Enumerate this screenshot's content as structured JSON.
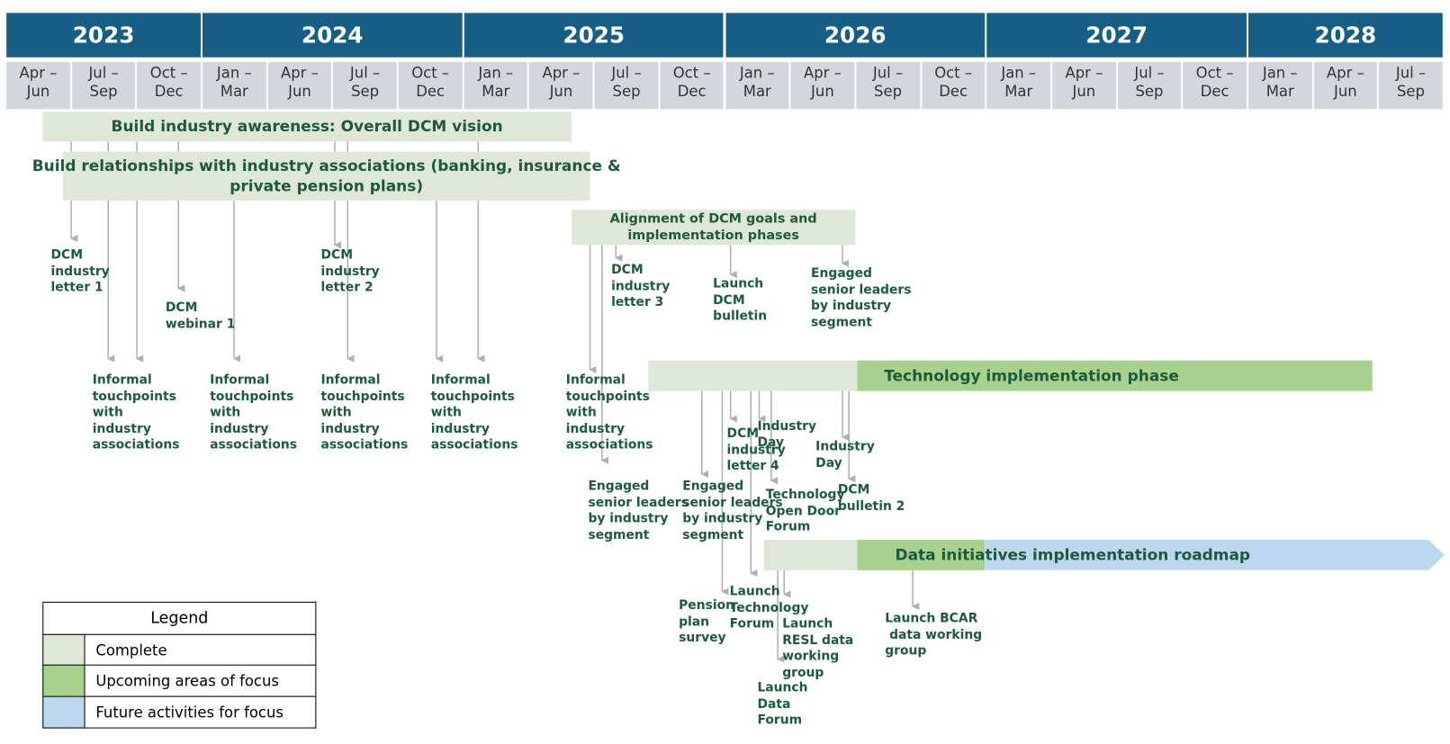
{
  "timeline": {
    "years": [
      "2023",
      "2024",
      "2025",
      "2026",
      "2027",
      "2028"
    ],
    "quarters": [
      [
        "Apr –",
        "Jun"
      ],
      [
        "Jul –",
        "Sep"
      ],
      [
        "Oct –",
        "Dec"
      ],
      [
        "Jan –",
        "Mar"
      ],
      [
        "Apr –",
        "Jun"
      ],
      [
        "Jul –",
        "Sep"
      ],
      [
        "Oct –",
        "Dec"
      ],
      [
        "Jan –",
        "Mar"
      ],
      [
        "Apr –",
        "Jun"
      ],
      [
        "Jul –",
        "Sep"
      ],
      [
        "Oct –",
        "Dec"
      ],
      [
        "Jan –",
        "Mar"
      ],
      [
        "Apr –",
        "Jun"
      ],
      [
        "Jul –",
        "Sep"
      ],
      [
        "Oct –",
        "Dec"
      ],
      [
        "Jan –",
        "Mar"
      ],
      [
        "Apr –",
        "Jun"
      ],
      [
        "Jul –",
        "Sep"
      ],
      [
        "Oct –",
        "Dec"
      ],
      [
        "Jan –",
        "Mar"
      ],
      [
        "Apr –",
        "Jun"
      ],
      [
        "Jul –",
        "Sep"
      ]
    ]
  },
  "bars": [
    {
      "label_lines": [
        "Build industry awareness: Overall DCM vision"
      ],
      "segments": [
        {
          "color": "#dfe7d9"
        }
      ]
    },
    {
      "label_lines": [
        "Build relationships with industry associations (banking, insurance &",
        "private pension plans)"
      ],
      "segments": [
        {
          "color": "#dfe7d9"
        }
      ]
    },
    {
      "label_lines": [
        "Alignment of DCM goals and",
        "implementation phases"
      ],
      "segments": [
        {
          "color": "#dfe7d9"
        }
      ]
    },
    {
      "label_lines": [
        "Technology implementation phase"
      ],
      "segments": [
        {
          "color": "#dfe7d9"
        },
        {
          "color": "#a9d18e"
        }
      ]
    },
    {
      "label_lines": [
        "Data initiatives implementation roadmap"
      ],
      "segments": [
        {
          "color": "#dfe7d9"
        },
        {
          "color": "#a9d18e"
        },
        {
          "color": "#bdd7ee"
        }
      ]
    }
  ],
  "milestones": [
    {
      "label_lines": [
        "DCM",
        "industry",
        "letter 1"
      ]
    },
    {
      "label_lines": [
        "DCM",
        "webinar 1"
      ]
    },
    {
      "label_lines": [
        "DCM",
        "industry",
        "letter 2"
      ]
    },
    {
      "label_lines": [
        "Informal",
        "touchpoints",
        "with",
        "industry",
        "associations"
      ]
    },
    {
      "label_lines": [
        "Informal",
        "touchpoints",
        "with",
        "industry",
        "associations"
      ]
    },
    {
      "label_lines": [
        "Informal",
        "touchpoints",
        "with",
        "industry",
        "associations"
      ]
    },
    {
      "label_lines": [
        "Informal",
        "touchpoints",
        "with",
        "industry",
        "associations"
      ]
    },
    {
      "label_lines": [
        "Informal",
        "touchpoints",
        "with",
        "industry",
        "associations"
      ]
    },
    {
      "label_lines": [
        "DCM",
        "industry",
        "letter 3"
      ]
    },
    {
      "label_lines": [
        "Launch",
        "DCM",
        "bulletin"
      ]
    },
    {
      "label_lines": [
        "Engaged",
        "senior leaders",
        "by industry",
        "segment"
      ]
    },
    {
      "label_lines": [
        "Engaged",
        "senior leaders",
        "by industry",
        "segment"
      ]
    },
    {
      "label_lines": [
        "Engaged",
        "senior leaders",
        "by industry",
        "segment"
      ]
    },
    {
      "label_lines": [
        "DCM",
        "industry",
        "letter 4"
      ]
    },
    {
      "label_lines": [
        "Industry",
        "Day"
      ]
    },
    {
      "label_lines": [
        "Technology",
        "Open Door",
        "Forum"
      ]
    },
    {
      "label_lines": [
        "Industry",
        "Day"
      ]
    },
    {
      "label_lines": [
        "DCM",
        "bulletin 2"
      ]
    },
    {
      "label_lines": [
        "Pension",
        "plan",
        "survey"
      ]
    },
    {
      "label_lines": [
        "Launch",
        "Technology",
        "Forum"
      ]
    },
    {
      "label_lines": [
        "Launch",
        "RESL data",
        "working",
        "group"
      ]
    },
    {
      "label_lines": [
        "Launch",
        "Data",
        "Forum"
      ]
    },
    {
      "label_lines": [
        "Launch BCAR",
        " data working",
        "group"
      ]
    }
  ],
  "legend": {
    "title": "Legend",
    "items": [
      {
        "label": "Complete",
        "color": "#dfe7d9"
      },
      {
        "label": "Upcoming areas of focus",
        "color": "#a9d18e"
      },
      {
        "label": "Future activities for focus",
        "color": "#bdd7ee"
      }
    ]
  }
}
